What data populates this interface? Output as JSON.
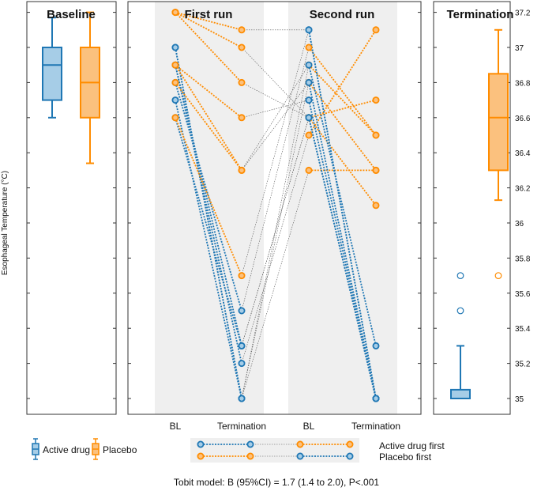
{
  "chart_data": {
    "type": "box+slope",
    "ylabel": "Esophageal Temperature (°C)",
    "ylim": [
      34.95,
      37.3
    ],
    "yticks": [
      "37.2",
      "37",
      "36.8",
      "36.6",
      "36.4",
      "36.2",
      "36",
      "35.8",
      "35.6",
      "35.4",
      "35.2",
      "35"
    ],
    "panels": {
      "baseline": {
        "title": "Baseline",
        "boxes": [
          {
            "group": "Active drug",
            "min": 36.6,
            "q1": 36.7,
            "median": 36.9,
            "q3": 37.0,
            "max": 37.17
          },
          {
            "group": "Placebo",
            "min": 36.34,
            "q1": 36.6,
            "median": 36.8,
            "q3": 37.0,
            "max": 37.2
          }
        ]
      },
      "first_run": {
        "title": "First run"
      },
      "second_run": {
        "title": "Second run"
      },
      "termination": {
        "title": "Termination",
        "boxes": [
          {
            "group": "Active drug",
            "min": 35.0,
            "q1": 35.0,
            "median": 35.0,
            "q3": 35.05,
            "max": 35.3,
            "outliers": [
              35.5,
              35.7
            ]
          },
          {
            "group": "Placebo",
            "min": 36.13,
            "q1": 36.3,
            "median": 36.6,
            "q3": 36.85,
            "max": 37.1,
            "outliers": [
              35.7
            ]
          }
        ]
      }
    },
    "x_labels": [
      "BL",
      "Termination",
      "BL",
      "Termination"
    ],
    "series": [
      {
        "name": "Active drug first",
        "pairs": [
          {
            "run1": {
              "drug": "Active drug",
              "bl": 37.0,
              "term": 35.0
            },
            "run2": {
              "drug": "Placebo",
              "bl": 36.9,
              "term": 36.5
            }
          },
          {
            "run1": {
              "drug": "Active drug",
              "bl": 36.9,
              "term": 35.2
            },
            "run2": {
              "drug": "Placebo",
              "bl": 36.5,
              "term": 37.1
            }
          },
          {
            "run1": {
              "drug": "Active drug",
              "bl": 36.9,
              "term": 35.3
            },
            "run2": {
              "drug": "Placebo",
              "bl": 36.6,
              "term": 36.7
            }
          },
          {
            "run1": {
              "drug": "Active drug",
              "bl": 36.8,
              "term": 35.5
            },
            "run2": {
              "drug": "Placebo",
              "bl": 37.0,
              "term": 36.5
            }
          },
          {
            "run1": {
              "drug": "Active drug",
              "bl": 36.7,
              "term": 35.0
            },
            "run2": {
              "drug": "Placebo",
              "bl": 36.3,
              "term": 36.3
            }
          },
          {
            "run1": {
              "drug": "Active drug",
              "bl": 36.6,
              "term": 35.3
            },
            "run2": {
              "drug": "Placebo",
              "bl": 36.6,
              "term": 36.1
            }
          },
          {
            "run1": {
              "drug": "Active drug",
              "bl": 37.0,
              "term": 35.0
            },
            "run2": {
              "drug": "Placebo",
              "bl": 36.8,
              "term": 36.3
            }
          }
        ]
      },
      {
        "name": "Placebo first",
        "pairs": [
          {
            "run1": {
              "drug": "Placebo",
              "bl": 37.2,
              "term": 37.1
            },
            "run2": {
              "drug": "Active drug",
              "bl": 37.1,
              "term": 35.0
            }
          },
          {
            "run1": {
              "drug": "Placebo",
              "bl": 37.2,
              "term": 37.0
            },
            "run2": {
              "drug": "Active drug",
              "bl": 36.6,
              "term": 35.0
            }
          },
          {
            "run1": {
              "drug": "Placebo",
              "bl": 37.2,
              "term": 36.8
            },
            "run2": {
              "drug": "Active drug",
              "bl": 36.6,
              "term": 35.0
            }
          },
          {
            "run1": {
              "drug": "Placebo",
              "bl": 36.9,
              "term": 36.6
            },
            "run2": {
              "drug": "Active drug",
              "bl": 36.7,
              "term": 35.0
            }
          },
          {
            "run1": {
              "drug": "Placebo",
              "bl": 36.9,
              "term": 36.3
            },
            "run2": {
              "drug": "Active drug",
              "bl": 36.8,
              "term": 35.0
            }
          },
          {
            "run1": {
              "drug": "Placebo",
              "bl": 36.8,
              "term": 36.3
            },
            "run2": {
              "drug": "Active drug",
              "bl": 36.9,
              "term": 35.3
            }
          },
          {
            "run1": {
              "drug": "Placebo",
              "bl": 36.6,
              "term": 35.7
            },
            "run2": {
              "drug": "Active drug",
              "bl": 37.1,
              "term": 35.0
            }
          }
        ]
      }
    ],
    "legend": {
      "drug": [
        "Active drug",
        "Placebo"
      ],
      "order": [
        "Active drug first",
        "Placebo first"
      ]
    },
    "colors": {
      "active": "#1f77b4",
      "placebo": "#ff8c00",
      "active_fill": "#a6cde7",
      "placebo_fill": "#fbc17e",
      "band": "#efefef"
    },
    "footnote": "Tobit model: B (95%CI) = 1.7 (1.4 to 2.0), P<.001"
  }
}
